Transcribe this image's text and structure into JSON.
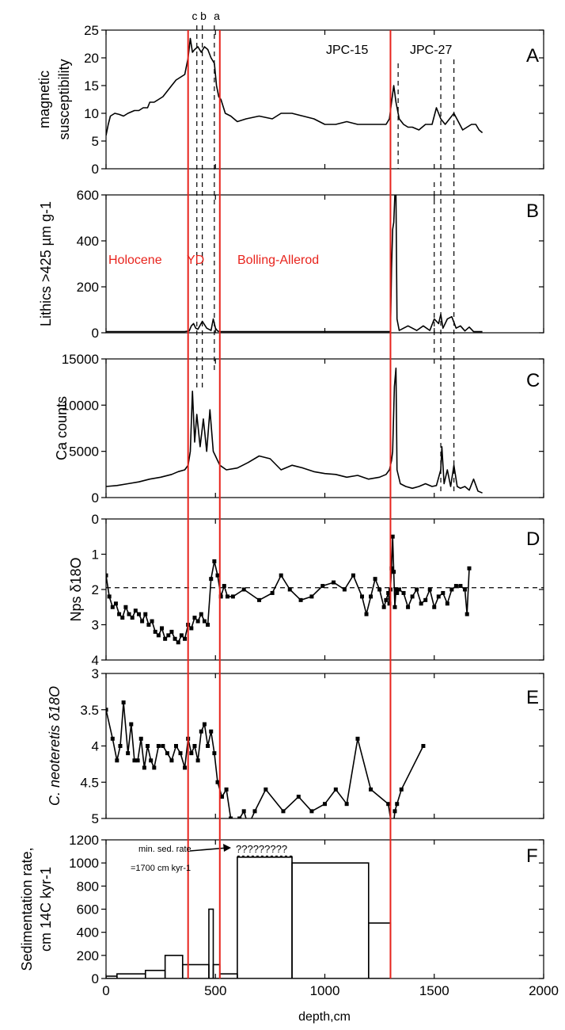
{
  "figure": {
    "xlabel": "depth,cm",
    "xlim": [
      0,
      2000
    ],
    "xticks": [
      0,
      500,
      1000,
      1500,
      2000
    ],
    "core_labels": [
      "JPC-15",
      "JPC-27"
    ],
    "event_labels": [
      "c",
      "b",
      "a"
    ],
    "period_labels": [
      "Holocene",
      "YD",
      "Bolling-Allerod"
    ],
    "red_line_depths": [
      375,
      520,
      1300
    ],
    "colors": {
      "red_lines": "#e8231c",
      "period_text": "#e8231c",
      "data": "#000000"
    }
  },
  "chart_data": [
    {
      "panel": "A",
      "type": "line",
      "ylabel": "magnetic susceptibility",
      "ylim": [
        0,
        25
      ],
      "yticks": [
        0,
        5,
        10,
        15,
        20,
        25
      ],
      "series": [
        {
          "x": [
            0,
            10,
            20,
            40,
            60,
            80,
            100,
            130,
            150,
            170,
            190,
            200,
            220,
            240,
            260,
            280,
            300,
            320,
            340,
            360,
            375,
            385,
            395,
            405,
            420,
            435,
            450,
            465,
            480,
            495,
            505,
            515,
            525,
            545,
            570,
            600,
            640,
            700,
            760,
            800,
            850,
            900,
            950,
            1000,
            1050,
            1100,
            1150,
            1200,
            1250,
            1280,
            1295,
            1305,
            1315,
            1325,
            1340,
            1360,
            1380,
            1400,
            1430,
            1460,
            1490,
            1510,
            1530,
            1550,
            1570,
            1590,
            1610,
            1630,
            1650,
            1670,
            1690,
            1705,
            1720
          ],
          "y": [
            6,
            8,
            9.5,
            10,
            9.8,
            9.5,
            10,
            10.5,
            10.5,
            11,
            11,
            12,
            12,
            12.5,
            13,
            14,
            15,
            16,
            16.5,
            17,
            20,
            23.5,
            21,
            21.5,
            22,
            21,
            22,
            21.5,
            20,
            19,
            15,
            13,
            12.5,
            10,
            9.5,
            8.5,
            9,
            9.5,
            9,
            10,
            10,
            9.5,
            9,
            8,
            8,
            8.5,
            8,
            8,
            8,
            8,
            9,
            12,
            15,
            12,
            9,
            8,
            7.5,
            7.5,
            7,
            8,
            8,
            11,
            9,
            8,
            9,
            10,
            8.5,
            7,
            7.5,
            8,
            8,
            7,
            6.5
          ]
        }
      ]
    },
    {
      "panel": "B",
      "type": "line",
      "ylabel": "Lithics >425 µm g-1",
      "ylim": [
        0,
        600
      ],
      "yticks": [
        0,
        200,
        400,
        600
      ],
      "series": [
        {
          "x": [
            0,
            100,
            200,
            300,
            360,
            380,
            390,
            400,
            410,
            420,
            440,
            460,
            480,
            490,
            500,
            510,
            520,
            600,
            800,
            1000,
            1200,
            1280,
            1295,
            1300,
            1305,
            1310,
            1315,
            1320,
            1325,
            1330,
            1340,
            1380,
            1420,
            1450,
            1480,
            1500,
            1520,
            1530,
            1540,
            1560,
            1580,
            1600,
            1620,
            1640,
            1660,
            1680,
            1720
          ],
          "y": [
            5,
            5,
            5,
            5,
            5,
            8,
            30,
            40,
            20,
            15,
            50,
            20,
            10,
            60,
            20,
            8,
            5,
            5,
            5,
            5,
            5,
            5,
            5,
            5,
            280,
            450,
            480,
            600,
            600,
            60,
            10,
            30,
            10,
            30,
            10,
            60,
            40,
            80,
            20,
            60,
            70,
            20,
            30,
            8,
            25,
            5,
            5
          ]
        }
      ]
    },
    {
      "panel": "C",
      "type": "line",
      "ylabel": "Ca counts",
      "ylim": [
        0,
        15000
      ],
      "yticks": [
        0,
        5000,
        10000,
        15000
      ],
      "series": [
        {
          "x": [
            0,
            50,
            100,
            150,
            200,
            250,
            300,
            330,
            360,
            375,
            385,
            395,
            405,
            415,
            430,
            445,
            460,
            475,
            490,
            500,
            510,
            520,
            550,
            600,
            650,
            700,
            750,
            800,
            850,
            900,
            950,
            1000,
            1050,
            1100,
            1150,
            1200,
            1250,
            1280,
            1295,
            1305,
            1310,
            1318,
            1325,
            1330,
            1345,
            1370,
            1400,
            1430,
            1460,
            1490,
            1510,
            1530,
            1535,
            1545,
            1560,
            1575,
            1590,
            1605,
            1620,
            1640,
            1660,
            1680,
            1700,
            1720
          ],
          "y": [
            1200,
            1300,
            1500,
            1700,
            2000,
            2200,
            2500,
            2800,
            3000,
            3500,
            5000,
            11500,
            6000,
            9000,
            5500,
            8500,
            5000,
            9500,
            5000,
            4500,
            4000,
            3500,
            3000,
            3200,
            3800,
            4500,
            4200,
            3000,
            3500,
            3200,
            2800,
            2600,
            2500,
            2200,
            2400,
            2000,
            2200,
            2500,
            3000,
            4000,
            5000,
            12000,
            14000,
            3000,
            1500,
            1200,
            1000,
            1200,
            1500,
            1200,
            1300,
            3000,
            5500,
            1500,
            3000,
            1200,
            3500,
            1200,
            1000,
            1200,
            800,
            2000,
            700,
            500
          ]
        }
      ]
    },
    {
      "panel": "D",
      "type": "line",
      "ylabel": "Nps δ18O",
      "ylim": [
        4,
        0
      ],
      "yticks": [
        0,
        1,
        2,
        3,
        4
      ],
      "reference_line": 1.95,
      "series": [
        {
          "x": [
            0,
            15,
            30,
            45,
            60,
            75,
            90,
            105,
            120,
            135,
            150,
            165,
            180,
            195,
            210,
            225,
            240,
            255,
            270,
            285,
            300,
            315,
            330,
            345,
            360,
            375,
            390,
            405,
            420,
            435,
            450,
            465,
            480,
            495,
            510,
            525,
            540,
            555,
            580,
            630,
            700,
            760,
            800,
            840,
            890,
            940,
            990,
            1040,
            1090,
            1130,
            1170,
            1190,
            1210,
            1230,
            1250,
            1270,
            1280,
            1290,
            1295,
            1300,
            1305,
            1310,
            1315,
            1320,
            1325,
            1330,
            1340,
            1360,
            1380,
            1400,
            1420,
            1440,
            1460,
            1480,
            1500,
            1520,
            1540,
            1560,
            1580,
            1600,
            1620,
            1640,
            1650,
            1660
          ],
          "y": [
            1.6,
            2.2,
            2.5,
            2.4,
            2.7,
            2.8,
            2.5,
            2.7,
            2.8,
            2.6,
            2.7,
            2.9,
            2.7,
            3.0,
            2.9,
            3.2,
            3.3,
            3.1,
            3.4,
            3.3,
            3.2,
            3.4,
            3.5,
            3.3,
            3.4,
            3.0,
            3.1,
            2.8,
            2.9,
            2.7,
            2.9,
            3.0,
            1.7,
            1.2,
            1.6,
            2.2,
            1.9,
            2.2,
            2.2,
            2.0,
            2.3,
            2.1,
            1.6,
            2.0,
            2.3,
            2.2,
            1.9,
            1.8,
            2.0,
            1.6,
            2.2,
            2.7,
            2.2,
            1.7,
            2.0,
            2.5,
            2.3,
            2.1,
            2.4,
            2.0,
            1.4,
            0.5,
            1.5,
            2.5,
            2.0,
            2.1,
            2.0,
            2.1,
            2.5,
            2.2,
            2.0,
            2.4,
            2.3,
            2.0,
            2.5,
            2.2,
            2.1,
            2.4,
            2.0,
            1.9,
            1.9,
            2.0,
            2.7,
            1.4
          ]
        }
      ]
    },
    {
      "panel": "E",
      "type": "line",
      "ylabel": "C. neoteretis δ18O",
      "ylim": [
        5,
        3
      ],
      "yticks": [
        3,
        3.5,
        4,
        4.5,
        5
      ],
      "series": [
        {
          "x": [
            0,
            30,
            50,
            65,
            80,
            100,
            115,
            130,
            145,
            160,
            175,
            190,
            205,
            220,
            240,
            260,
            280,
            300,
            320,
            340,
            360,
            375,
            390,
            405,
            420,
            435,
            450,
            465,
            480,
            495,
            510,
            530,
            550,
            570,
            590,
            610,
            630,
            650,
            680,
            730,
            810,
            880,
            940,
            1000,
            1050,
            1100,
            1150,
            1210,
            1290,
            1310,
            1320,
            1330,
            1350,
            1450
          ],
          "y": [
            3.5,
            3.9,
            4.2,
            4.0,
            3.4,
            4.1,
            3.7,
            4.2,
            4.2,
            3.9,
            4.3,
            4.0,
            4.2,
            4.3,
            4.0,
            4.0,
            4.1,
            4.2,
            4.0,
            4.1,
            4.3,
            3.9,
            4.1,
            4.0,
            4.2,
            3.8,
            3.7,
            4.0,
            3.8,
            4.1,
            4.5,
            4.7,
            4.6,
            5.0,
            5.1,
            5.0,
            4.9,
            5.1,
            4.9,
            4.6,
            4.9,
            4.7,
            4.9,
            4.8,
            4.6,
            4.8,
            3.9,
            4.6,
            4.8,
            5.2,
            4.9,
            4.8,
            4.6,
            4.0
          ]
        }
      ]
    },
    {
      "panel": "F",
      "type": "area",
      "ylabel": "Sedimentation rate, cm 14C kyr-1",
      "ylim": [
        0,
        1200
      ],
      "yticks": [
        0,
        200,
        400,
        600,
        800,
        1000,
        1200
      ],
      "annotations": [
        "min. sed. rate",
        "=1700 cm kyr-1",
        "?????????"
      ],
      "segments": [
        {
          "x0": 0,
          "x1": 50,
          "value": 20
        },
        {
          "x0": 50,
          "x1": 180,
          "value": 40
        },
        {
          "x0": 180,
          "x1": 270,
          "value": 70
        },
        {
          "x0": 270,
          "x1": 350,
          "value": 200
        },
        {
          "x0": 350,
          "x1": 470,
          "value": 120
        },
        {
          "x0": 470,
          "x1": 490,
          "value": 600
        },
        {
          "x0": 490,
          "x1": 520,
          "value": 120
        },
        {
          "x0": 520,
          "x1": 600,
          "value": 40
        },
        {
          "x0": 600,
          "x1": 850,
          "value": 1050
        },
        {
          "x0": 850,
          "x1": 1200,
          "value": 1000
        },
        {
          "x0": 1200,
          "x1": 1300,
          "value": 480
        }
      ]
    }
  ]
}
